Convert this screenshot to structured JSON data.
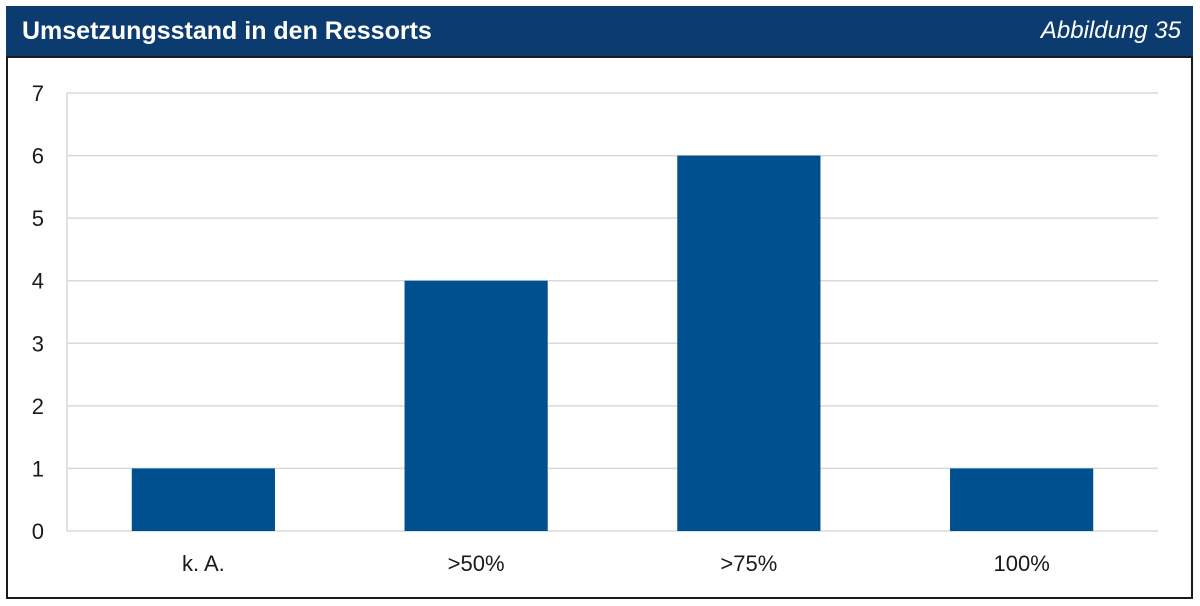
{
  "header": {
    "title": "Umsetzungsstand in den Ressorts",
    "figure_label": "Abbildung 35"
  },
  "colors": {
    "header_bg": "#0b3b6f",
    "bar": "#00508f",
    "grid": "#d9d9d9"
  },
  "chart_data": {
    "type": "bar",
    "categories": [
      "k. A.",
      ">50%",
      ">75%",
      "100%"
    ],
    "values": [
      1,
      4,
      6,
      1
    ],
    "ylim": [
      0,
      7
    ],
    "yticks": [
      0,
      1,
      2,
      3,
      4,
      5,
      6,
      7
    ],
    "grid": true,
    "legend": "none",
    "title": "",
    "xlabel": "",
    "ylabel": ""
  }
}
